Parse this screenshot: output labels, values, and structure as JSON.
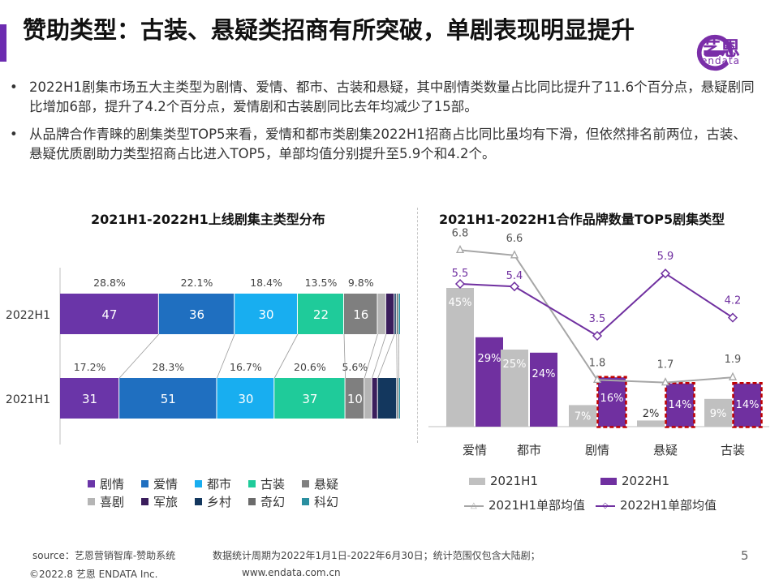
{
  "header": {
    "title": "赞助类型：古装、悬疑类招商有所突破，单剧表现明显提升",
    "logo_text": "艺恩",
    "logo_sub": "endata"
  },
  "bullets": [
    "2022H1剧集市场五大主类型为剧情、爱情、都市、古装和悬疑，其中剧情类数量占比同比提升了11.6个百分点，悬疑剧同比增加6部，提升了4.2个百分点，爱情剧和古装剧同比去年均减少了15部。",
    "从品牌合作青睐的剧集类型TOP5来看，爱情和都市类剧集2022H1招商占比同比虽均有下滑，但依然排名前两位，古装、悬疑优质剧助力类型招商占比进入TOP5，单部均值分别提升至5.9个和4.2个。"
  ],
  "colors": {
    "剧情": "#6a35a8",
    "爱情": "#1f6fc0",
    "都市": "#18aef0",
    "古装": "#1fcb9a",
    "悬疑": "#7f7f7f",
    "喜剧": "#b5b5b5",
    "军旅": "#3a1d5c",
    "乡村": "#13375e",
    "奇幻": "#6b6b6b",
    "科幻": "#2a8fa0",
    "bar2021": "#c0c0c0",
    "bar2022": "#7030a0",
    "highlight": "#c00000"
  },
  "chart_data": [
    {
      "type": "bar",
      "orientation": "horizontal-stacked",
      "title": "2021H1-2022H1上线剧集主类型分布",
      "categories": [
        "2022H1",
        "2021H1"
      ],
      "series": [
        {
          "name": "剧情",
          "values": [
            47,
            31
          ],
          "shares": [
            "28.8%",
            "17.2%"
          ]
        },
        {
          "name": "爱情",
          "values": [
            36,
            51
          ],
          "shares": [
            "22.1%",
            "28.3%"
          ]
        },
        {
          "name": "都市",
          "values": [
            30,
            30
          ],
          "shares": [
            "18.4%",
            "16.7%"
          ]
        },
        {
          "name": "古装",
          "values": [
            22,
            37
          ],
          "shares": [
            "13.5%",
            "20.6%"
          ]
        },
        {
          "name": "悬疑",
          "values": [
            16,
            10
          ],
          "shares": [
            "9.8%",
            "5.6%"
          ]
        },
        {
          "name": "喜剧",
          "values": [
            4,
            4
          ]
        },
        {
          "name": "军旅",
          "values": [
            4,
            3
          ]
        },
        {
          "name": "乡村",
          "values": [
            1,
            10
          ]
        },
        {
          "name": "奇幻",
          "values": [
            1,
            1
          ]
        },
        {
          "name": "科幻",
          "values": [
            1,
            1
          ]
        }
      ],
      "legend": [
        "剧情",
        "爱情",
        "都市",
        "古装",
        "悬疑",
        "喜剧",
        "军旅",
        "乡村",
        "奇幻",
        "科幻"
      ]
    },
    {
      "type": "bar",
      "title": "2021H1-2022H1合作品牌数量TOP5剧集类型",
      "categories": [
        "爱情",
        "都市",
        "剧情",
        "悬疑",
        "古装"
      ],
      "series": [
        {
          "name": "2021H1",
          "values": [
            45,
            25,
            7,
            2,
            9
          ],
          "labels": [
            "45%",
            "25%",
            "7%",
            "2%",
            "9%"
          ]
        },
        {
          "name": "2022H1",
          "values": [
            29,
            24,
            16,
            14,
            14
          ],
          "labels": [
            "29%",
            "24%",
            "16%",
            "14%",
            "14%"
          ]
        },
        {
          "name": "2021H1单部均值",
          "type": "line",
          "values": [
            6.8,
            6.6,
            1.8,
            1.7,
            1.9
          ]
        },
        {
          "name": "2022H1单部均值",
          "type": "line",
          "values": [
            5.5,
            5.4,
            3.5,
            5.9,
            4.2
          ]
        }
      ],
      "highlighted": [
        "剧情",
        "悬疑",
        "古装"
      ],
      "legend": [
        "2021H1",
        "2022H1",
        "2021H1单部均值",
        "2022H1单部均值"
      ]
    }
  ],
  "footer": {
    "source": "source：艺恩营销智库-赞助系统",
    "note": "数据统计周期为2022年1月1日-2022年6月30日；统计范围仅包含大陆剧；",
    "copyright": "©2022.8 艺恩 ENDATA Inc.",
    "website": "www.endata.com.cn",
    "page": "5"
  }
}
